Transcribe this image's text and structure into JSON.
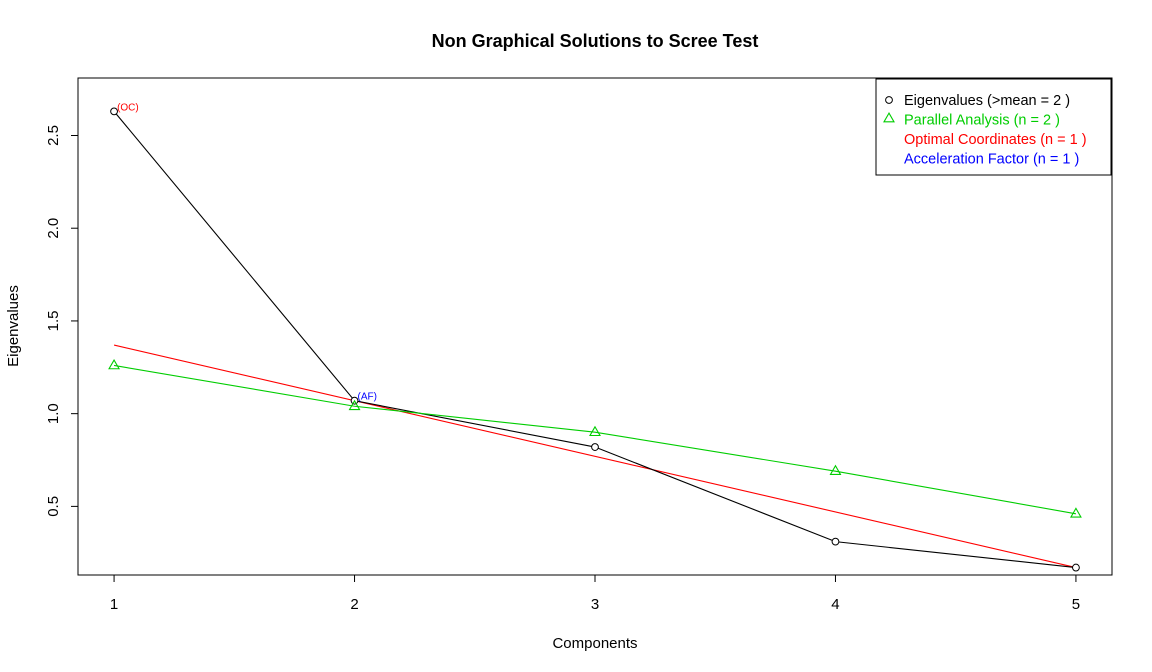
{
  "chart_data": {
    "type": "line",
    "title": "Non Graphical Solutions to Scree Test",
    "xlabel": "Components",
    "ylabel": "Eigenvalues",
    "xlim": [
      0.85,
      5.15
    ],
    "ylim": [
      0.13,
      2.81
    ],
    "x_ticks": [
      1,
      2,
      3,
      4,
      5
    ],
    "y_ticks": [
      0.5,
      1.0,
      1.5,
      2.0,
      2.5
    ],
    "y_tick_labels": [
      "0.5",
      "1.0",
      "1.5",
      "2.0",
      "2.5"
    ],
    "x": [
      1,
      2,
      3,
      4,
      5
    ],
    "series": [
      {
        "name": "Eigenvalues (>mean  =  2 )",
        "values": [
          2.63,
          1.07,
          0.82,
          0.31,
          0.17
        ],
        "color": "#000000",
        "marker": "circle"
      },
      {
        "name": "Parallel Analysis (n =  2 )",
        "values": [
          1.26,
          1.04,
          0.9,
          0.69,
          0.46
        ],
        "color": "#00cd00",
        "marker": "triangle"
      }
    ],
    "optimal_coordinates_line": {
      "x": [
        1,
        5
      ],
      "values": [
        1.37,
        0.17
      ],
      "color": "#ff0000"
    },
    "legend": {
      "placement": "top-right",
      "entries": [
        {
          "label": "Eigenvalues (>mean  =  2 )",
          "color": "#000000",
          "marker": "circle"
        },
        {
          "label": "Parallel Analysis (n =  2 )",
          "color": "#00cd00",
          "marker": "triangle"
        },
        {
          "label": "Optimal Coordinates (n =  1 )",
          "color": "#ff0000",
          "marker": "none"
        },
        {
          "label": "Acceleration Factor (n =  1 )",
          "color": "#0000ff",
          "marker": "none"
        }
      ]
    },
    "annotations": [
      {
        "text": "(OC)",
        "x": 1,
        "y": 2.63,
        "color": "#ff0000"
      },
      {
        "text": "(AF)",
        "x": 2,
        "y": 1.07,
        "color": "#0000ff"
      }
    ],
    "grid": false
  }
}
